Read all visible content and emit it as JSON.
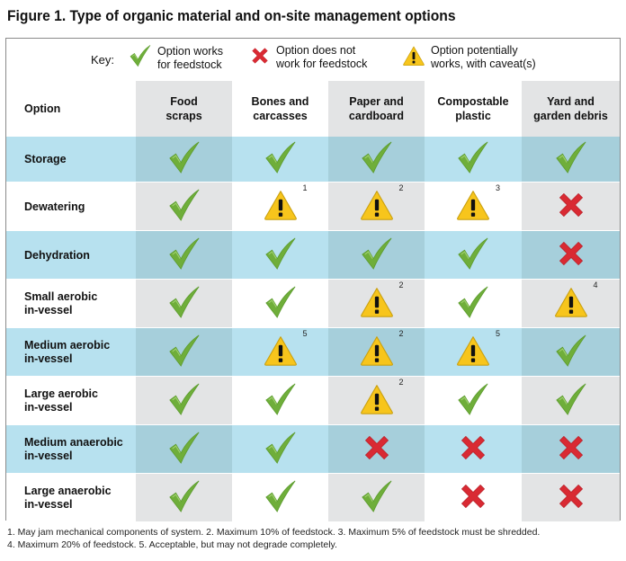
{
  "title": "Figure 1. Type of organic material and on-site management options",
  "key": {
    "label": "Key:",
    "items": [
      {
        "icon": "check",
        "text": "Option works\nfor feedstock"
      },
      {
        "icon": "x",
        "text": "Option does not\nwork for feedstock"
      },
      {
        "icon": "warning",
        "text": "Option potentially\nworks, with caveat(s)"
      }
    ]
  },
  "header": {
    "option_label": "Option",
    "columns": [
      "Food\nscraps",
      "Bones and\ncarcasses",
      "Paper and\ncardboard",
      "Compostable\nplastic",
      "Yard and\ngarden debris"
    ]
  },
  "rows": [
    {
      "label": "Storage",
      "cells": [
        {
          "icon": "check"
        },
        {
          "icon": "check"
        },
        {
          "icon": "check"
        },
        {
          "icon": "check"
        },
        {
          "icon": "check"
        }
      ]
    },
    {
      "label": "Dewatering",
      "cells": [
        {
          "icon": "check"
        },
        {
          "icon": "warning",
          "note": "1"
        },
        {
          "icon": "warning",
          "note": "2"
        },
        {
          "icon": "warning",
          "note": "3"
        },
        {
          "icon": "x"
        }
      ]
    },
    {
      "label": "Dehydration",
      "cells": [
        {
          "icon": "check"
        },
        {
          "icon": "check"
        },
        {
          "icon": "check"
        },
        {
          "icon": "check"
        },
        {
          "icon": "x"
        }
      ]
    },
    {
      "label": "Small aerobic\nin-vessel",
      "cells": [
        {
          "icon": "check"
        },
        {
          "icon": "check"
        },
        {
          "icon": "warning",
          "note": "2"
        },
        {
          "icon": "check"
        },
        {
          "icon": "warning",
          "note": "4"
        }
      ]
    },
    {
      "label": "Medium aerobic\nin-vessel",
      "cells": [
        {
          "icon": "check"
        },
        {
          "icon": "warning",
          "note": "5"
        },
        {
          "icon": "warning",
          "note": "2"
        },
        {
          "icon": "warning",
          "note": "5"
        },
        {
          "icon": "check"
        }
      ]
    },
    {
      "label": "Large aerobic\nin-vessel",
      "cells": [
        {
          "icon": "check"
        },
        {
          "icon": "check"
        },
        {
          "icon": "warning",
          "note": "2"
        },
        {
          "icon": "check"
        },
        {
          "icon": "check"
        }
      ]
    },
    {
      "label": "Medium anaerobic\nin-vessel",
      "cells": [
        {
          "icon": "check"
        },
        {
          "icon": "check"
        },
        {
          "icon": "x"
        },
        {
          "icon": "x"
        },
        {
          "icon": "x"
        }
      ]
    },
    {
      "label": "Large anaerobic\nin-vessel",
      "cells": [
        {
          "icon": "check"
        },
        {
          "icon": "check"
        },
        {
          "icon": "check"
        },
        {
          "icon": "x"
        },
        {
          "icon": "x"
        }
      ]
    }
  ],
  "footnotes": [
    "1. May jam mechanical components of system. 2. Maximum 10% of feedstock. 3. Maximum 5% of feedstock must be shredded.",
    "4. Maximum 20% of feedstock. 5. Acceptable, but may not degrade completely."
  ],
  "colors": {
    "blue_row": "#b7e1ef",
    "blue_row_shaded": "#a6cfdb",
    "gray_col": "#e3e4e5",
    "white": "#ffffff",
    "check": "#6fae3a",
    "x": "#d92a33",
    "warning": "#f7c51c"
  }
}
